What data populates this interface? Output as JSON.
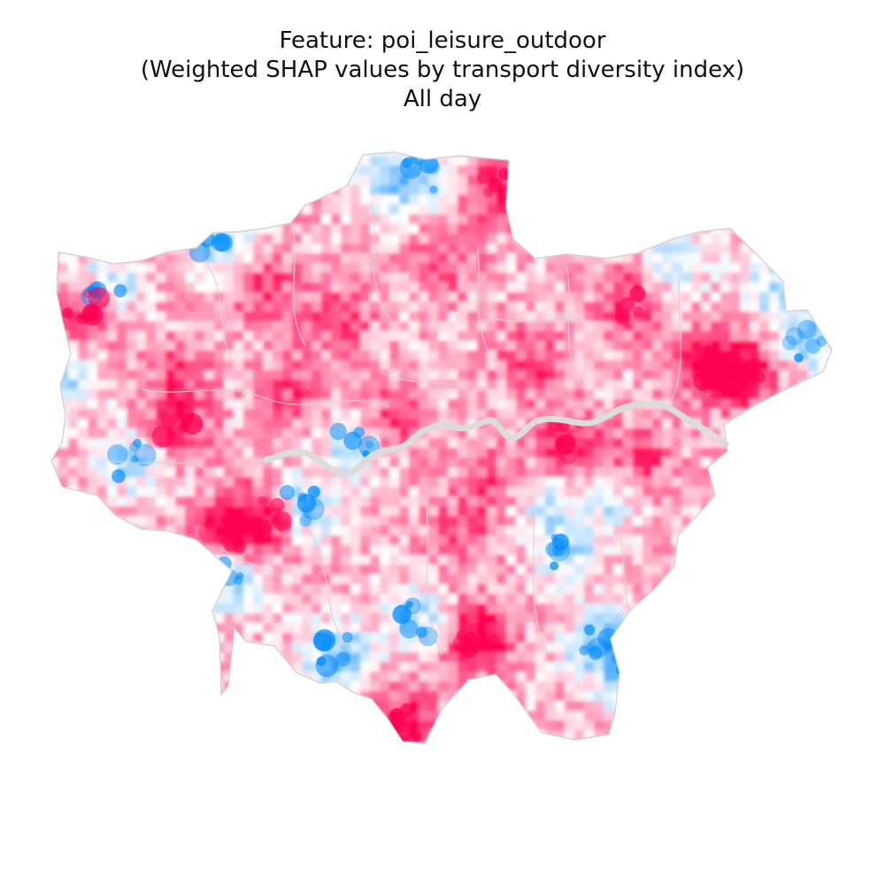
{
  "title": {
    "line1": "Feature: poi_leisure_outdoor",
    "line2": "(Weighted SHAP values by transport diversity index)",
    "line3": "All day"
  },
  "colors": {
    "boundary": "#d4d4d4",
    "river": "#dcdcdc",
    "pink": "#ff0052",
    "blue": "#008bfb",
    "white": "#ffffff"
  },
  "map": {
    "type": "choropleth",
    "region": "Greater London",
    "colormap": "diverging blue–pink",
    "legend": "none"
  }
}
